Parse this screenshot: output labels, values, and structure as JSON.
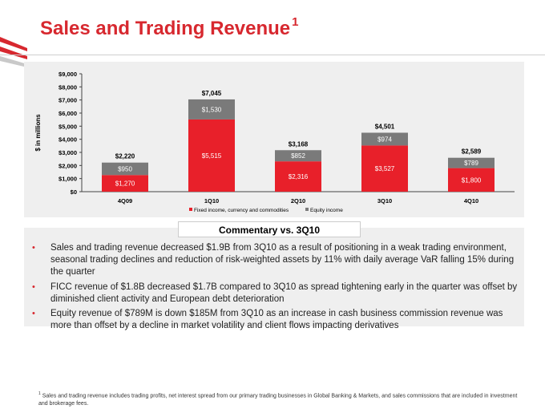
{
  "page": {
    "title": "Sales and Trading Revenue",
    "title_superscript": "1",
    "commentary_heading": "Commentary vs. 3Q10",
    "bullets": [
      "Sales and trading revenue decreased $1.9B from 3Q10 as a result of positioning in a weak trading environment, seasonal trading declines and reduction of risk-weighted assets by 11% with daily average VaR falling 15% during the quarter",
      "FICC revenue of $1.8B decreased $1.7B compared to 3Q10 as spread tightening early in the quarter was offset by diminished client activity and European debt deterioration",
      "Equity revenue of $789M is down $185M from 3Q10 as an increase in cash business commission revenue was more than offset by a decline in market volatility and client flows impacting derivatives"
    ],
    "footnote_marker": "1",
    "footnote": "Sales and trading revenue includes trading profits, net interest spread from our primary trading businesses in Global Banking & Markets, and sales commissions that are included in investment and brokerage fees.",
    "colors": {
      "accent": "#d7282f",
      "panel": "#efefef",
      "equity": "#7a7a7a"
    },
    "icons": {
      "logo": "flag-logo-icon",
      "bullet": "bullet-icon"
    }
  },
  "chart_data": {
    "type": "bar",
    "stacked": true,
    "categories": [
      "4Q09",
      "1Q10",
      "2Q10",
      "3Q10",
      "4Q10"
    ],
    "series": [
      {
        "name": "Fixed income, currency and commodities",
        "values": [
          1270,
          5515,
          2316,
          3527,
          1800
        ],
        "labels": [
          "$1,270",
          "$5,515",
          "$2,316",
          "$3,527",
          "$1,800"
        ],
        "color": "#e8202a"
      },
      {
        "name": "Equity income",
        "values": [
          950,
          1530,
          852,
          974,
          789
        ],
        "labels": [
          "$950",
          "$1,530",
          "$852",
          "$974",
          "$789"
        ],
        "color": "#7a7a7a"
      }
    ],
    "totals": [
      2220,
      7045,
      3168,
      4501,
      2589
    ],
    "total_labels": [
      "$2,220",
      "$7,045",
      "$3,168",
      "$4,501",
      "$2,589"
    ],
    "ylabel": "$ in millions",
    "ylim": [
      0,
      9000
    ],
    "yticks": [
      0,
      1000,
      2000,
      3000,
      4000,
      5000,
      6000,
      7000,
      8000,
      9000
    ],
    "ytick_labels": [
      "$0",
      "$1,000",
      "$2,000",
      "$3,000",
      "$4,000",
      "$5,000",
      "$6,000",
      "$7,000",
      "$8,000",
      "$9,000"
    ],
    "grid": false,
    "legend": "bottom"
  }
}
